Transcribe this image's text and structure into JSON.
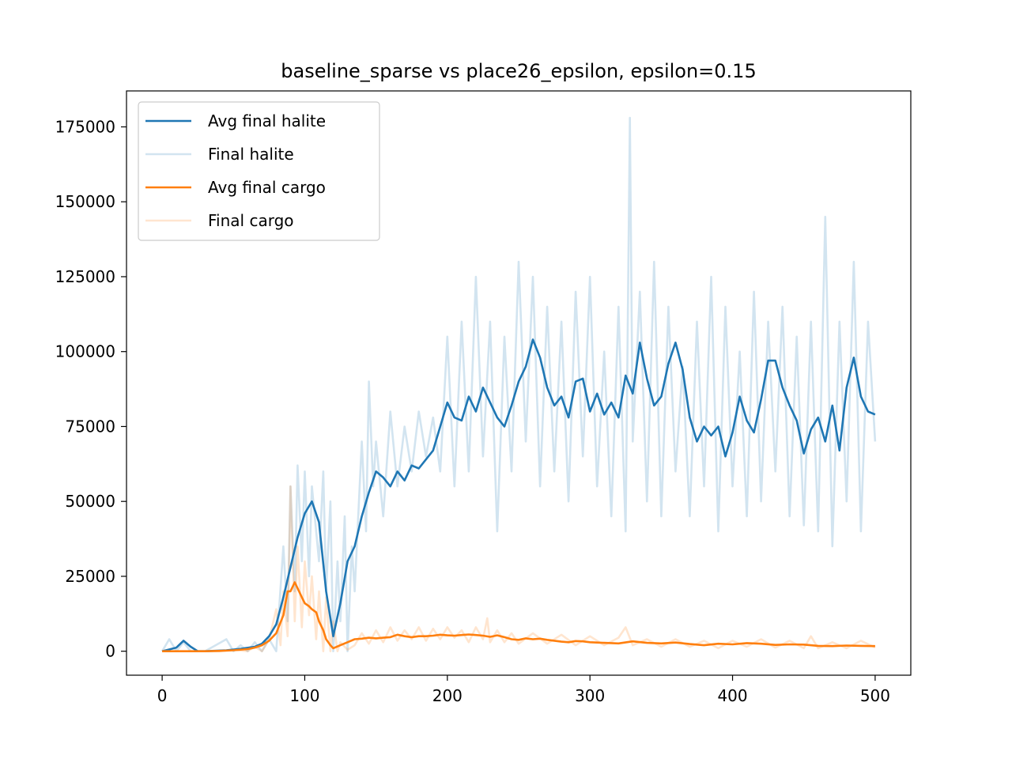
{
  "chart_data": {
    "type": "line",
    "title": "baseline_sparse vs place26_epsilon, epsilon=0.15",
    "xlabel": "",
    "ylabel": "",
    "xlim": [
      -25,
      525
    ],
    "ylim": [
      -8000,
      187000
    ],
    "xticks": [
      "0",
      "100",
      "200",
      "300",
      "400",
      "500"
    ],
    "yticks": [
      "0",
      "25000",
      "50000",
      "75000",
      "100000",
      "125000",
      "150000",
      "175000"
    ],
    "grid": false,
    "legend_position": "upper-left",
    "series": [
      {
        "name": "Avg final halite",
        "color": "#1f77b4",
        "opacity": 1.0,
        "x": [
          0,
          10,
          15,
          20,
          25,
          30,
          45,
          55,
          65,
          70,
          75,
          80,
          85,
          90,
          95,
          100,
          105,
          110,
          115,
          120,
          125,
          130,
          135,
          140,
          145,
          150,
          155,
          160,
          165,
          170,
          175,
          180,
          185,
          190,
          195,
          200,
          205,
          210,
          215,
          220,
          225,
          230,
          235,
          240,
          245,
          250,
          255,
          260,
          265,
          270,
          275,
          280,
          285,
          290,
          295,
          300,
          305,
          310,
          315,
          320,
          325,
          330,
          335,
          340,
          345,
          350,
          355,
          360,
          365,
          370,
          375,
          380,
          385,
          390,
          395,
          400,
          405,
          410,
          415,
          420,
          425,
          430,
          435,
          440,
          445,
          450,
          455,
          460,
          465,
          470,
          475,
          480,
          485,
          490,
          495,
          500
        ],
        "y": [
          0,
          1200,
          3500,
          1500,
          0,
          0,
          300,
          800,
          1500,
          2500,
          5000,
          9000,
          18000,
          28000,
          38000,
          46000,
          50000,
          43000,
          20000,
          5000,
          16000,
          30000,
          35000,
          45000,
          53000,
          60000,
          58000,
          55000,
          60000,
          57000,
          62000,
          61000,
          64000,
          67000,
          75000,
          83000,
          78000,
          77000,
          85000,
          80000,
          88000,
          83000,
          78000,
          75000,
          82000,
          90000,
          95000,
          104000,
          98000,
          88000,
          82000,
          85000,
          78000,
          90000,
          91000,
          80000,
          86000,
          79000,
          83000,
          78000,
          92000,
          86000,
          103000,
          91000,
          82000,
          85000,
          96000,
          103000,
          94000,
          78000,
          70000,
          75000,
          72000,
          75000,
          65000,
          73000,
          85000,
          77000,
          73000,
          84000,
          97000,
          97000,
          88000,
          82000,
          77000,
          66000,
          74000,
          78000,
          70000,
          82000,
          67000,
          88000,
          98000,
          85000,
          80000,
          79000
        ]
      },
      {
        "name": "Final halite",
        "color": "#1f77b4",
        "opacity": 0.2,
        "x": [
          0,
          5,
          10,
          15,
          20,
          25,
          30,
          45,
          50,
          55,
          60,
          65,
          70,
          75,
          80,
          85,
          88,
          90,
          93,
          95,
          98,
          100,
          103,
          105,
          108,
          110,
          113,
          115,
          118,
          120,
          123,
          125,
          128,
          130,
          133,
          135,
          138,
          140,
          143,
          145,
          148,
          150,
          155,
          160,
          165,
          170,
          175,
          180,
          185,
          190,
          195,
          200,
          205,
          210,
          215,
          220,
          225,
          230,
          235,
          240,
          245,
          250,
          255,
          260,
          265,
          270,
          275,
          280,
          285,
          290,
          295,
          300,
          305,
          310,
          315,
          320,
          325,
          328,
          330,
          335,
          340,
          345,
          350,
          355,
          360,
          365,
          370,
          375,
          380,
          385,
          390,
          395,
          400,
          405,
          410,
          415,
          420,
          425,
          430,
          435,
          440,
          445,
          450,
          455,
          460,
          465,
          470,
          475,
          480,
          485,
          490,
          495,
          500
        ],
        "y": [
          0,
          4000,
          0,
          3000,
          0,
          0,
          0,
          4000,
          0,
          2000,
          0,
          3000,
          0,
          4000,
          0,
          35000,
          10000,
          55000,
          20000,
          62000,
          30000,
          60000,
          25000,
          55000,
          40000,
          30000,
          60000,
          20000,
          50000,
          0,
          30000,
          10000,
          45000,
          0,
          35000,
          20000,
          50000,
          70000,
          40000,
          90000,
          55000,
          70000,
          45000,
          80000,
          55000,
          75000,
          60000,
          80000,
          65000,
          78000,
          60000,
          105000,
          55000,
          110000,
          60000,
          125000,
          65000,
          110000,
          40000,
          105000,
          60000,
          130000,
          70000,
          125000,
          55000,
          115000,
          60000,
          110000,
          50000,
          120000,
          65000,
          125000,
          55000,
          100000,
          45000,
          115000,
          40000,
          178000,
          70000,
          120000,
          50000,
          130000,
          45000,
          115000,
          60000,
          95000,
          45000,
          110000,
          55000,
          125000,
          40000,
          115000,
          55000,
          100000,
          45000,
          120000,
          50000,
          110000,
          60000,
          115000,
          45000,
          105000,
          42000,
          110000,
          40000,
          145000,
          35000,
          110000,
          50000,
          130000,
          40000,
          110000,
          70000
        ]
      },
      {
        "name": "Avg final cargo",
        "color": "#ff7f0e",
        "opacity": 1.0,
        "x": [
          0,
          10,
          20,
          30,
          40,
          50,
          60,
          65,
          70,
          75,
          80,
          85,
          88,
          90,
          93,
          95,
          98,
          100,
          103,
          105,
          108,
          110,
          113,
          115,
          118,
          120,
          125,
          130,
          135,
          140,
          145,
          150,
          155,
          160,
          165,
          170,
          175,
          180,
          185,
          190,
          195,
          200,
          205,
          210,
          215,
          220,
          225,
          230,
          235,
          240,
          245,
          250,
          255,
          260,
          265,
          270,
          275,
          280,
          285,
          290,
          295,
          300,
          310,
          320,
          330,
          340,
          350,
          360,
          370,
          380,
          390,
          400,
          410,
          420,
          430,
          440,
          450,
          460,
          470,
          480,
          490,
          500
        ],
        "y": [
          0,
          0,
          0,
          0,
          100,
          300,
          700,
          1200,
          2000,
          3500,
          6000,
          12000,
          20000,
          20000,
          23000,
          21000,
          18000,
          16000,
          15000,
          14000,
          13000,
          10000,
          7000,
          4000,
          2000,
          1000,
          2000,
          3000,
          4000,
          4200,
          4500,
          4300,
          4500,
          4700,
          5500,
          5000,
          4700,
          5000,
          5000,
          5200,
          5500,
          5300,
          5200,
          5400,
          5600,
          5400,
          5200,
          4800,
          5300,
          4700,
          4000,
          3800,
          4300,
          4000,
          4200,
          3800,
          3500,
          3200,
          3000,
          3400,
          3300,
          3000,
          2800,
          2600,
          3300,
          2800,
          2600,
          2900,
          2400,
          2000,
          2500,
          2300,
          2700,
          2500,
          2100,
          2300,
          2200,
          1800,
          1700,
          1900,
          1800,
          1700
        ]
      },
      {
        "name": "Final cargo",
        "color": "#ff7f0e",
        "opacity": 0.2,
        "x": [
          0,
          10,
          20,
          30,
          40,
          50,
          60,
          65,
          70,
          75,
          80,
          83,
          85,
          88,
          90,
          93,
          95,
          98,
          100,
          103,
          105,
          108,
          110,
          113,
          115,
          118,
          120,
          123,
          125,
          130,
          135,
          140,
          145,
          150,
          155,
          160,
          165,
          170,
          175,
          180,
          185,
          190,
          195,
          200,
          205,
          210,
          215,
          220,
          225,
          228,
          230,
          235,
          240,
          245,
          250,
          260,
          270,
          280,
          290,
          300,
          310,
          320,
          325,
          330,
          340,
          350,
          360,
          370,
          380,
          390,
          400,
          410,
          420,
          430,
          440,
          450,
          455,
          460,
          470,
          480,
          490,
          500
        ],
        "y": [
          0,
          0,
          0,
          0,
          0,
          500,
          0,
          1500,
          0,
          4000,
          14000,
          2000,
          20000,
          5000,
          55000,
          10000,
          35000,
          8000,
          30000,
          12000,
          25000,
          4000,
          20000,
          0,
          18000,
          0,
          10000,
          0,
          3000,
          500,
          2000,
          6000,
          2500,
          7000,
          3000,
          8000,
          3500,
          7000,
          4000,
          8000,
          3500,
          7500,
          4000,
          8000,
          4500,
          7000,
          3000,
          8000,
          4000,
          11000,
          3000,
          7000,
          3000,
          6000,
          2500,
          6000,
          2500,
          5500,
          2000,
          5000,
          2000,
          4500,
          8000,
          2000,
          4000,
          1500,
          4000,
          1500,
          3500,
          1000,
          3500,
          1500,
          4000,
          1200,
          3500,
          1000,
          5000,
          1000,
          3000,
          1000,
          3500,
          1200
        ]
      }
    ]
  }
}
